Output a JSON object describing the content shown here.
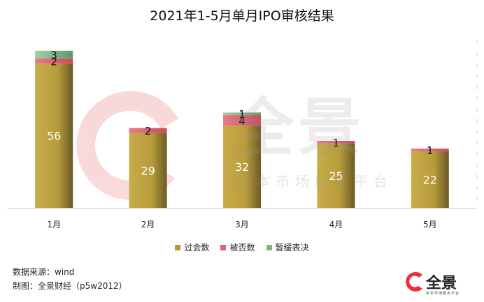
{
  "chart_data": {
    "type": "bar",
    "stacked": true,
    "title": "2021年1-5月单月IPO审核结果",
    "categories": [
      "1月",
      "2月",
      "3月",
      "4月",
      "5月"
    ],
    "series": [
      {
        "name": "过会数",
        "values": [
          56,
          29,
          32,
          25,
          22
        ],
        "color": "#b59a3a"
      },
      {
        "name": "被否数",
        "values": [
          2,
          2,
          4,
          1,
          1
        ],
        "color": "#e0606e"
      },
      {
        "name": "暂缓表决",
        "values": [
          3,
          0,
          1,
          0,
          0
        ],
        "color": "#7db384"
      }
    ],
    "ylim": [
      0,
      65
    ],
    "legend_position": "bottom",
    "grid": false
  },
  "footnotes": {
    "source": "数据来源：wind",
    "credit": "制图：全景财经（p5w2012）"
  },
  "watermark": {
    "main": "全景",
    "sub": "资本市场服务平台"
  },
  "logo": {
    "text": "全景",
    "sub": "资本市场服务平台"
  }
}
